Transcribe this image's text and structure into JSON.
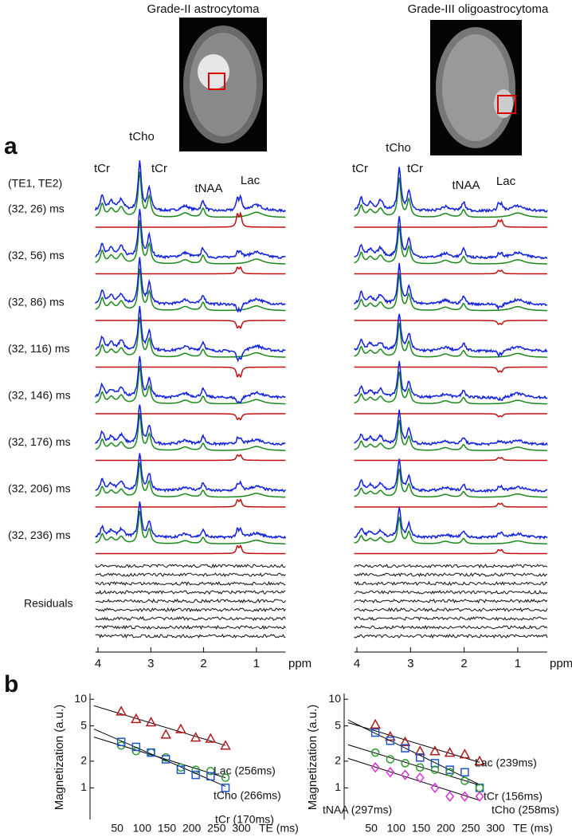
{
  "panel_a": {
    "label": "a",
    "titles": [
      "Grade-II astrocytoma",
      "Grade-III oligoastrocytoma"
    ],
    "header": "(TE1, TE2)",
    "rows": [
      "(32, 26) ms",
      "(32, 56) ms",
      "(32, 86) ms",
      "(32, 116) ms",
      "(32, 146) ms",
      "(32, 176) ms",
      "(32, 206) ms",
      "(32, 236) ms"
    ],
    "residuals": "Residuals",
    "peak_labels": [
      [
        "tCr",
        "tCho",
        "tCr",
        "tNAA",
        "Lac"
      ],
      [
        "tCr",
        "tCho",
        "tCr",
        "tNAA",
        "Lac"
      ]
    ],
    "xlim": [
      4.05,
      0.45
    ],
    "xticks": [
      4,
      3,
      2,
      1
    ],
    "xunit": "ppm"
  },
  "chart_data": [
    {
      "type": "scatter",
      "label": "b",
      "ylabel": "Magnetization (a.u.)",
      "xlabel": "TE (ms)",
      "xlim": [
        0,
        300
      ],
      "xticks": [
        50,
        100,
        150,
        200,
        250,
        300
      ],
      "ylim": [
        0.44,
        11.6
      ],
      "log_y": true,
      "yticks": [
        1,
        2,
        5,
        10
      ],
      "x": [
        58,
        88,
        118,
        148,
        178,
        208,
        238,
        268
      ],
      "series": [
        {
          "name": "Lac (256ms)",
          "color": "#b01c1c",
          "marker": "triangle",
          "values": [
            7.3,
            6.0,
            5.5,
            4.0,
            4.6,
            3.7,
            3.6,
            3.0
          ]
        },
        {
          "name": "tCho (266ms)",
          "color": "#2a9a2a",
          "marker": "circle",
          "values": [
            3.0,
            2.6,
            2.5,
            2.2,
            1.7,
            1.6,
            1.55,
            1.3
          ]
        },
        {
          "name": "tCr (170ms)",
          "color": "#2255cc",
          "marker": "square",
          "values": [
            3.3,
            2.9,
            2.5,
            2.1,
            1.6,
            1.4,
            1.35,
            1.0
          ]
        }
      ]
    },
    {
      "type": "scatter",
      "ylabel": "Magnetization (a.u.)",
      "xlabel": "TE (ms)",
      "xlim": [
        0,
        300
      ],
      "xticks": [
        50,
        100,
        150,
        200,
        250,
        300
      ],
      "ylim": [
        0.44,
        11.6
      ],
      "log_y": true,
      "yticks": [
        1,
        2,
        5,
        10
      ],
      "x": [
        58,
        88,
        118,
        148,
        178,
        208,
        238,
        268
      ],
      "series": [
        {
          "name": "Lac (239ms)",
          "color": "#b01c1c",
          "marker": "triangle",
          "values": [
            5.2,
            3.8,
            3.3,
            2.6,
            2.6,
            2.5,
            2.4,
            2.0
          ]
        },
        {
          "name": "tCr (156ms)",
          "color": "#2255cc",
          "marker": "square",
          "values": [
            4.2,
            3.4,
            2.8,
            2.2,
            1.9,
            1.6,
            1.5,
            1.0
          ]
        },
        {
          "name": "tCho (258ms)",
          "color": "#2a9a2a",
          "marker": "circle",
          "values": [
            2.5,
            2.1,
            1.9,
            1.7,
            1.6,
            1.5,
            1.2,
            1.0
          ]
        },
        {
          "name": "tNAA (297ms)",
          "color": "#d633d6",
          "marker": "diamond",
          "values": [
            1.7,
            1.5,
            1.4,
            1.3,
            1.0,
            0.8,
            0.8,
            0.8
          ]
        }
      ]
    }
  ]
}
